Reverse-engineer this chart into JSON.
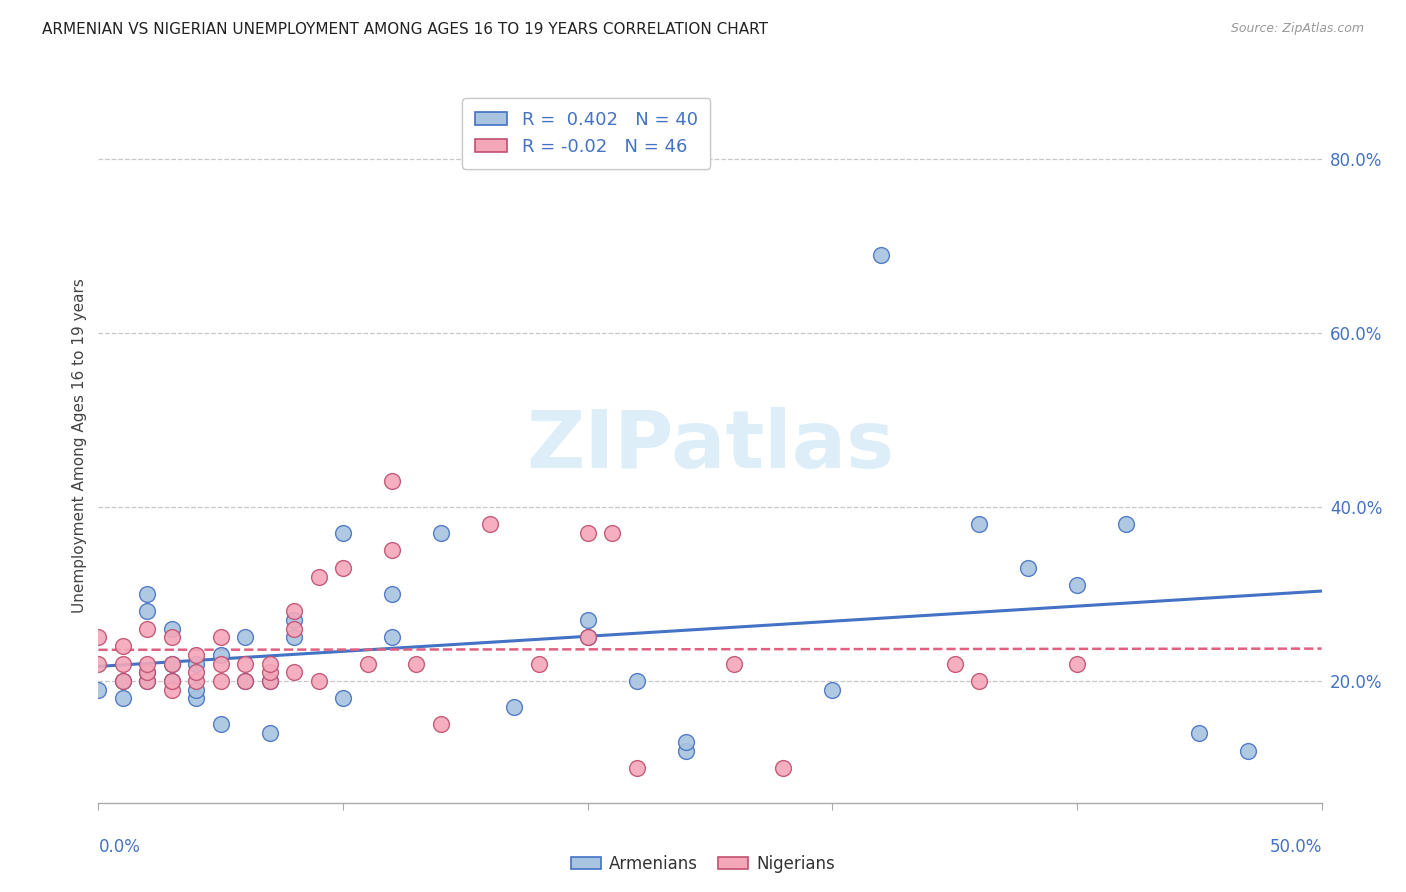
{
  "title": "ARMENIAN VS NIGERIAN UNEMPLOYMENT AMONG AGES 16 TO 19 YEARS CORRELATION CHART",
  "source": "Source: ZipAtlas.com",
  "ylabel": "Unemployment Among Ages 16 to 19 years",
  "y_ticks": [
    0.2,
    0.4,
    0.6,
    0.8
  ],
  "y_tick_labels": [
    "20.0%",
    "40.0%",
    "60.0%",
    "80.0%"
  ],
  "xlim": [
    0.0,
    0.5
  ],
  "ylim": [
    0.06,
    0.88
  ],
  "armenian_R": 0.402,
  "armenian_N": 40,
  "nigerian_R": -0.02,
  "nigerian_N": 46,
  "armenian_color": "#a8c4e0",
  "nigerian_color": "#f4a7b9",
  "armenian_line_color": "#4472c4",
  "nigerian_line_color": "#e06080",
  "nigerian_edge_color": "#c05070",
  "watermark_color": "#ddeef8",
  "armenians_x": [
    0.0,
    0.01,
    0.01,
    0.02,
    0.02,
    0.02,
    0.02,
    0.03,
    0.03,
    0.03,
    0.04,
    0.04,
    0.04,
    0.05,
    0.05,
    0.06,
    0.06,
    0.07,
    0.07,
    0.08,
    0.08,
    0.1,
    0.1,
    0.12,
    0.12,
    0.14,
    0.17,
    0.2,
    0.2,
    0.22,
    0.24,
    0.24,
    0.3,
    0.32,
    0.36,
    0.38,
    0.4,
    0.42,
    0.45,
    0.47
  ],
  "armenians_y": [
    0.19,
    0.18,
    0.2,
    0.2,
    0.21,
    0.28,
    0.3,
    0.2,
    0.22,
    0.26,
    0.18,
    0.19,
    0.22,
    0.15,
    0.23,
    0.25,
    0.2,
    0.14,
    0.2,
    0.25,
    0.27,
    0.18,
    0.37,
    0.25,
    0.3,
    0.37,
    0.17,
    0.25,
    0.27,
    0.2,
    0.12,
    0.13,
    0.19,
    0.69,
    0.38,
    0.33,
    0.31,
    0.38,
    0.14,
    0.12
  ],
  "nigerians_x": [
    0.0,
    0.0,
    0.01,
    0.01,
    0.01,
    0.02,
    0.02,
    0.02,
    0.02,
    0.03,
    0.03,
    0.03,
    0.03,
    0.04,
    0.04,
    0.04,
    0.05,
    0.05,
    0.05,
    0.06,
    0.06,
    0.07,
    0.07,
    0.07,
    0.08,
    0.08,
    0.08,
    0.09,
    0.09,
    0.1,
    0.11,
    0.12,
    0.12,
    0.13,
    0.14,
    0.16,
    0.18,
    0.2,
    0.2,
    0.21,
    0.22,
    0.26,
    0.28,
    0.35,
    0.36,
    0.4
  ],
  "nigerians_y": [
    0.22,
    0.25,
    0.2,
    0.22,
    0.24,
    0.2,
    0.21,
    0.22,
    0.26,
    0.19,
    0.2,
    0.22,
    0.25,
    0.2,
    0.21,
    0.23,
    0.2,
    0.22,
    0.25,
    0.2,
    0.22,
    0.2,
    0.21,
    0.22,
    0.21,
    0.26,
    0.28,
    0.2,
    0.32,
    0.33,
    0.22,
    0.35,
    0.43,
    0.22,
    0.15,
    0.38,
    0.22,
    0.25,
    0.37,
    0.37,
    0.1,
    0.22,
    0.1,
    0.22,
    0.2,
    0.22
  ]
}
